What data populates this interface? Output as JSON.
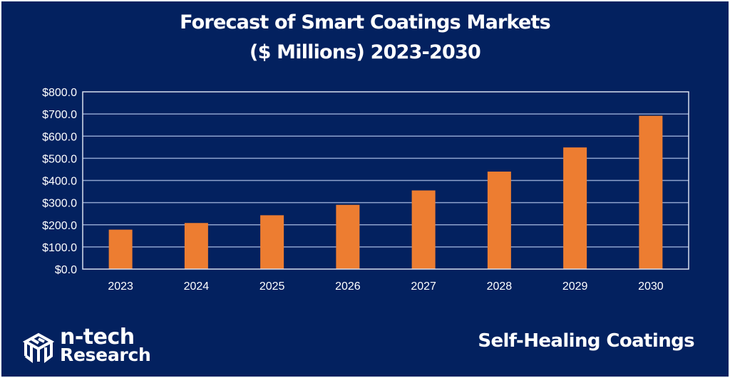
{
  "chart_data": {
    "type": "bar",
    "title": "Forecast of Smart Coatings Markets",
    "title_line2": "($ Millions) 2023-2030",
    "categories": [
      "2023",
      "2024",
      "2025",
      "2026",
      "2027",
      "2028",
      "2029",
      "2030"
    ],
    "values": [
      178,
      208,
      243,
      290,
      355,
      440,
      549,
      692
    ],
    "series": [
      {
        "name": "Self-Healing Coatings",
        "values": [
          178,
          208,
          243,
          290,
          355,
          440,
          549,
          692
        ]
      }
    ],
    "xlabel": "",
    "ylabel": "",
    "ylim": [
      0,
      800
    ],
    "yticks": [
      0,
      100,
      200,
      300,
      400,
      500,
      600,
      700,
      800
    ],
    "ytick_labels": [
      "$0.0",
      "$100.0",
      "$200.0",
      "$300.0",
      "$400.0",
      "$500.0",
      "$600.0",
      "$700.0",
      "$800.0"
    ],
    "grid": true,
    "legend": "none",
    "bar_color": "#ED7D31",
    "background_color": "#03215F",
    "gridline_color": "#8FA3CE"
  },
  "footer": {
    "logo_line1": "n-tech",
    "logo_line2": "Research",
    "subtitle": "Self-Healing Coatings"
  }
}
